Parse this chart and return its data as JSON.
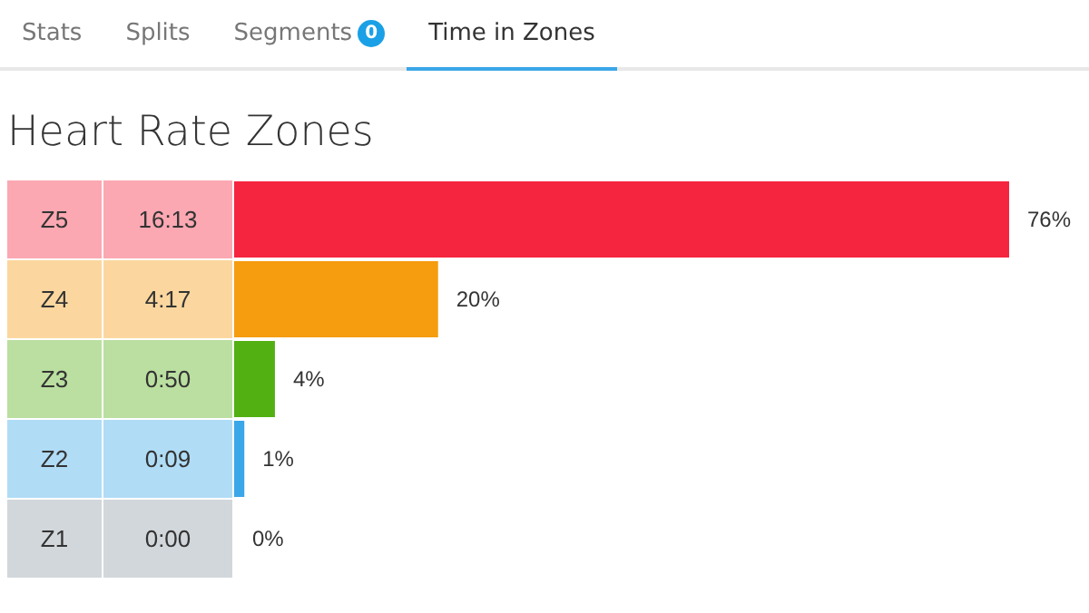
{
  "chart_data": {
    "type": "bar",
    "orientation": "horizontal",
    "title": "Heart Rate Zones",
    "categories": [
      "Z5",
      "Z4",
      "Z3",
      "Z2",
      "Z1"
    ],
    "values": [
      76,
      20,
      4,
      1,
      0
    ],
    "value_labels": [
      "76%",
      "20%",
      "4%",
      "1%",
      "0%"
    ],
    "colors": [
      "#f5253f",
      "#f59c0f",
      "#52b012",
      "#3aa7e8",
      "#8f9aa5"
    ],
    "annotations": [
      "Stats",
      "Splits",
      "Segments",
      "0",
      "Time in Zones",
      "16:13",
      "4:17",
      "0:50",
      "0:09",
      "0:00"
    ]
  }
}
